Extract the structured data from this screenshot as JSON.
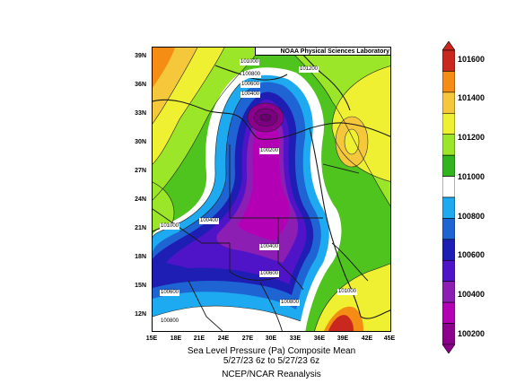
{
  "header": {
    "credit": "NOAA Physical Sciences Laboratory"
  },
  "map": {
    "lat_labels": [
      "39N",
      "36N",
      "33N",
      "30N",
      "27N",
      "24N",
      "21N",
      "18N",
      "15N",
      "12N"
    ],
    "lon_labels": [
      "15E",
      "18E",
      "21E",
      "24E",
      "27E",
      "30E",
      "33E",
      "36E",
      "39E",
      "42E",
      "45E"
    ],
    "contour_labels": [
      "101000",
      "100800",
      "100600",
      "100400",
      "101200",
      "100200",
      "101000",
      "100400",
      "100400",
      "100600",
      "100600",
      "100800",
      "101000",
      "100800"
    ]
  },
  "colorbar": {
    "ticks": [
      "101600",
      "101400",
      "101200",
      "101000",
      "100800",
      "100600",
      "100400",
      "100200"
    ],
    "colors": [
      "#c8281e",
      "#f58c14",
      "#f5c83c",
      "#f0f032",
      "#9be628",
      "#32b41e",
      "#ffffff",
      "#1eaaf0",
      "#1e64d2",
      "#1e1eb4",
      "#5014c8",
      "#8c1eb4",
      "#b400b4",
      "#8c008c"
    ]
  },
  "caption": {
    "line1": "Sea Level Pressure (Pa)    Composite Mean",
    "line2": "5/27/23 6z  to 5/27/23 6z",
    "line3": "NCEP/NCAR Reanalysis"
  }
}
